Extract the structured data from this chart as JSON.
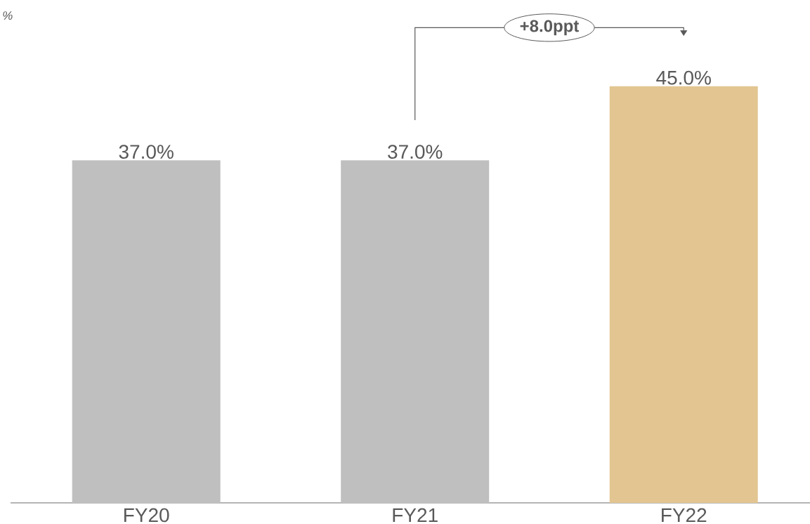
{
  "chart_data": {
    "type": "bar",
    "categories": [
      "FY20",
      "FY21",
      "FY22"
    ],
    "values": [
      37.0,
      37.0,
      45.0
    ],
    "colors": [
      "#bfbfbf",
      "#bfbfbf",
      "#e2c591"
    ],
    "value_labels": [
      "37.0%",
      "37.0%",
      "45.0%"
    ],
    "annotations": [
      "%",
      "+8.0ppt"
    ]
  }
}
